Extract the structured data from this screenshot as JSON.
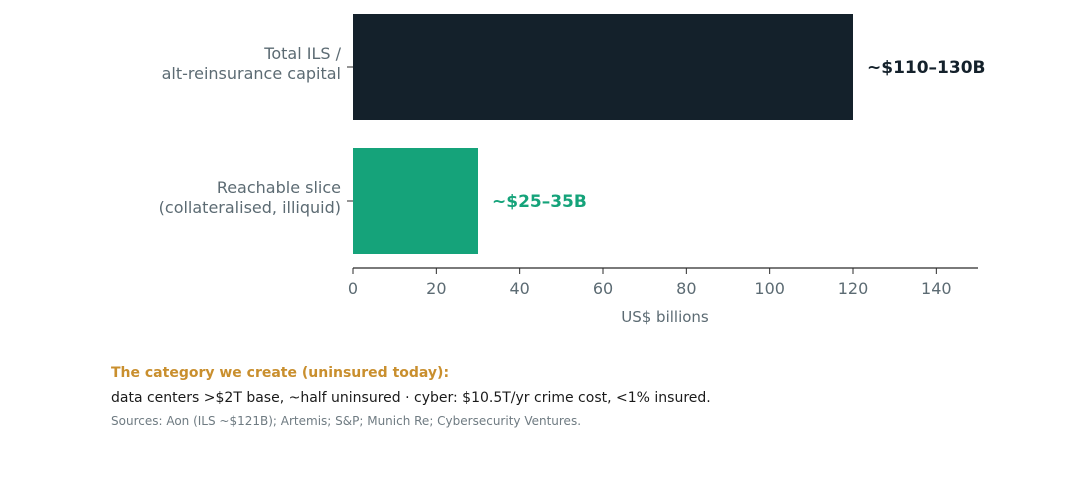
{
  "chart_data": {
    "type": "bar",
    "orientation": "horizontal",
    "categories": [
      [
        "Total ILS /",
        "alt-reinsurance capital"
      ],
      [
        "Reachable slice",
        "(collateralised, illiquid)"
      ]
    ],
    "values": [
      120,
      30
    ],
    "data_labels": [
      "~$110–130B",
      "~$25–35B"
    ],
    "colors": [
      "#14212b",
      "#15a37a"
    ],
    "xlabel": "US$ billions",
    "xlim": [
      0,
      150
    ],
    "xticks": [
      0,
      20,
      40,
      60,
      80,
      100,
      120,
      140
    ],
    "grid": false
  },
  "notes": {
    "title": "The category we create (uninsured today):",
    "body": "data centers >$2T base, ~half uninsured  ·  cyber: $10.5T/yr crime cost, <1% insured.",
    "sources": "Sources: Aon (ILS ~$121B); Artemis; S&P; Munich Re; Cybersecurity Ventures."
  },
  "colors": {
    "title_accent": "#c98f2e",
    "axis_text": "#5c6b73"
  }
}
